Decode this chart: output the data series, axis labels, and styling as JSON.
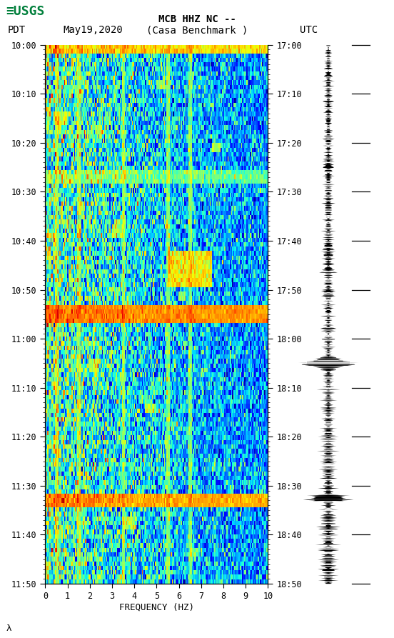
{
  "title_line1": "MCB HHZ NC --",
  "title_line2": "(Casa Benchmark )",
  "date_label": "May19,2020",
  "left_timezone": "PDT",
  "right_timezone": "UTC",
  "left_times": [
    "10:00",
    "10:10",
    "10:20",
    "10:30",
    "10:40",
    "10:50",
    "11:00",
    "11:10",
    "11:20",
    "11:30",
    "11:40",
    "11:50"
  ],
  "right_times": [
    "17:00",
    "17:10",
    "17:20",
    "17:30",
    "17:40",
    "17:50",
    "18:00",
    "18:10",
    "18:20",
    "18:30",
    "18:40",
    "18:50"
  ],
  "freq_label": "FREQUENCY (HZ)",
  "freq_min": 0,
  "freq_max": 10,
  "freq_ticks": [
    0,
    1,
    2,
    3,
    4,
    5,
    6,
    7,
    8,
    9,
    10
  ],
  "bg_color": "#ffffff",
  "spectrogram_colormap": "jet",
  "usgs_color": "#007f3b",
  "figsize": [
    5.52,
    8.93
  ],
  "dpi": 100,
  "n_time": 120,
  "n_freq": 200
}
